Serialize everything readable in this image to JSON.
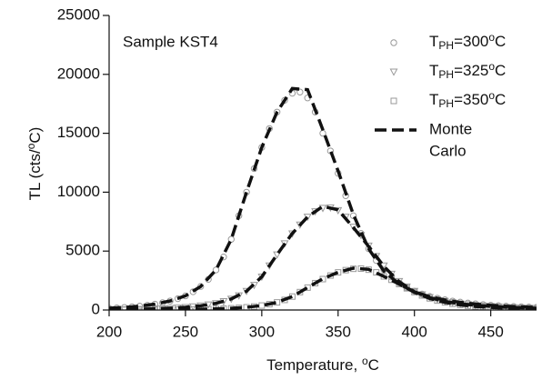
{
  "chart_data": {
    "type": "scatter",
    "annotation": "Sample KST4",
    "xlabel": [
      "Temperature, ",
      "o",
      "C"
    ],
    "ylabel": [
      "TL (cts/",
      "o",
      "C)"
    ],
    "xlim": [
      200,
      480
    ],
    "xticks": [
      200,
      250,
      300,
      350,
      400,
      450
    ],
    "ylim": [
      0,
      25000
    ],
    "yticks": [
      0,
      5000,
      10000,
      15000,
      20000,
      25000
    ],
    "x": [
      200,
      205,
      210,
      215,
      220,
      225,
      230,
      235,
      240,
      245,
      250,
      255,
      260,
      265,
      270,
      275,
      280,
      285,
      290,
      295,
      300,
      305,
      310,
      315,
      320,
      325,
      330,
      335,
      340,
      345,
      350,
      355,
      360,
      365,
      370,
      375,
      380,
      385,
      390,
      395,
      400,
      405,
      410,
      415,
      420,
      425,
      430,
      435,
      440,
      445,
      450,
      455,
      460,
      465,
      470,
      475,
      480
    ],
    "series": [
      {
        "name": [
          "T",
          "PH",
          "=300",
          "o",
          "C"
        ],
        "color": "#999999",
        "marker": "circle",
        "values": [
          150,
          180,
          220,
          270,
          330,
          400,
          500,
          620,
          770,
          960,
          1200,
          1550,
          2000,
          2600,
          3400,
          4500,
          6000,
          8000,
          10000,
          12000,
          13800,
          15400,
          16800,
          17800,
          18400,
          18500,
          18000,
          16800,
          15000,
          13500,
          11600,
          9700,
          8000,
          6500,
          5200,
          4200,
          3400,
          2800,
          2300,
          1900,
          1600,
          1350,
          1150,
          1000,
          870,
          760,
          670,
          590,
          520,
          460,
          410,
          370,
          330,
          300,
          270,
          250,
          230
        ]
      },
      {
        "name": [
          "T",
          "PH",
          "=325",
          "o",
          "C"
        ],
        "color": "#999999",
        "marker": "triangle",
        "values": [
          38,
          45,
          52,
          61,
          71,
          85,
          103,
          127,
          155,
          188,
          235,
          291,
          362,
          451,
          564,
          729,
          940,
          1222,
          1598,
          2115,
          2820,
          3760,
          4700,
          5640,
          6486,
          7238,
          7896,
          8366,
          8648,
          8695,
          8460,
          7896,
          7050,
          6345,
          5452,
          4559,
          3760,
          3055,
          2444,
          1974,
          1598,
          1316,
          1081,
          893,
          752,
          635,
          541,
          470,
          409,
          357,
          315,
          277,
          244,
          216,
          193,
          174,
          155
        ]
      },
      {
        "name": [
          "T",
          "PH",
          "=350",
          "o",
          "C"
        ],
        "color": "#999999",
        "marker": "square",
        "values": [
          6,
          7,
          8,
          9,
          10,
          12,
          15,
          18,
          29,
          34,
          42,
          51,
          63,
          76,
          95,
          118,
          146,
          182,
          228,
          295,
          380,
          494,
          646,
          855,
          1140,
          1520,
          1900,
          2280,
          2622,
          2926,
          3192,
          3382,
          3496,
          3515,
          3420,
          3192,
          2850,
          2565,
          2204,
          1843,
          1520,
          1235,
          988,
          798,
          646,
          532,
          437,
          361,
          304,
          257,
          219,
          190,
          165,
          144,
          127,
          112,
          103
        ]
      }
    ],
    "fit": {
      "name": [
        "Monte",
        "Carlo"
      ],
      "color": "#111111",
      "x": [
        200,
        210,
        220,
        230,
        240,
        250,
        260,
        270,
        280,
        290,
        300,
        310,
        320,
        330,
        340,
        350,
        360,
        370,
        380,
        390,
        400,
        410,
        420,
        430,
        440,
        450,
        460,
        470,
        480
      ],
      "curves": [
        [
          150,
          220,
          330,
          500,
          770,
          1200,
          2000,
          3400,
          6000,
          10000,
          13800,
          16800,
          18800,
          18700,
          15300,
          11800,
          8100,
          5200,
          3300,
          2200,
          1550,
          1130,
          850,
          650,
          500,
          400,
          320,
          260,
          220
        ],
        [
          38,
          52,
          71,
          103,
          155,
          235,
          362,
          564,
          940,
          1598,
          2820,
          4700,
          6500,
          7900,
          8800,
          8500,
          7000,
          5400,
          3700,
          2400,
          1550,
          1050,
          730,
          520,
          400,
          310,
          240,
          190,
          150
        ],
        [
          6,
          8,
          10,
          15,
          29,
          42,
          63,
          95,
          146,
          228,
          380,
          646,
          1140,
          1900,
          2650,
          3200,
          3550,
          3450,
          2850,
          2200,
          1500,
          980,
          640,
          430,
          300,
          220,
          165,
          127,
          100
        ]
      ]
    }
  }
}
